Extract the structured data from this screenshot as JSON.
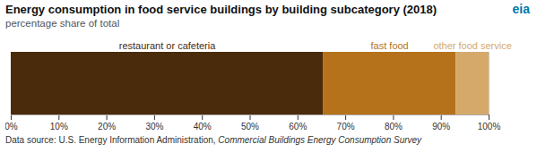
{
  "chart_data": {
    "type": "bar",
    "orientation": "horizontal",
    "stacked": true,
    "title": "Energy consumption in food service buildings by building subcategory (2018)",
    "subtitle": "percentage share of total",
    "source": [
      "Data source: U.S. Energy Information Administration, ",
      "Commercial Buildings Energy Consumption Survey"
    ],
    "annotations": [
      "eia"
    ],
    "categories": [
      null
    ],
    "series": [
      {
        "name": "restaurant or cafeteria",
        "color": "#4a2b0c",
        "values": [
          0.653
        ]
      },
      {
        "name": "fast food",
        "color": "#b5721a",
        "values": [
          0.278
        ]
      },
      {
        "name": "other food service",
        "color": "#d4a96a",
        "values": [
          0.069
        ]
      }
    ],
    "xlim": [
      0,
      1
    ],
    "xticks": [
      {
        "value": 0.0,
        "label": "0%"
      },
      {
        "value": 0.1,
        "label": "10%"
      },
      {
        "value": 0.2,
        "label": "20%"
      },
      {
        "value": 0.3,
        "label": "30%"
      },
      {
        "value": 0.4,
        "label": "40%"
      },
      {
        "value": 0.5,
        "label": "50%"
      },
      {
        "value": 0.6,
        "label": "60%"
      },
      {
        "value": 0.7,
        "label": "70%"
      },
      {
        "value": 0.8,
        "label": "80%"
      },
      {
        "value": 0.9,
        "label": "90%"
      },
      {
        "value": 1.0,
        "label": "100%"
      }
    ],
    "grid": true,
    "tick_labels": "x"
  }
}
